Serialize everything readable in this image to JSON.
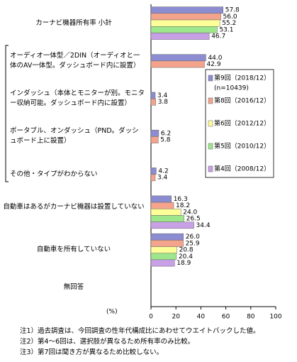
{
  "chart_data": {
    "type": "barh",
    "categories": [
      "カーナビ機器所有率 小計",
      "オーディオ一体型／2DIN（オーディオと一体のAV一体型。ダッシュボード内に設置）",
      "インダッシュ（本体とモニターが別。モニター収納可能。ダッシュボード内に設置）",
      "ポータブル、オンダッシュ（PND。ダッシュボード上に設置）",
      "その他・タイプがわからない",
      "自動車はあるがカーナビ機器は設置していない",
      "自動車を所有していない",
      "無回答"
    ],
    "series": [
      {
        "name": "第9回（2018/12）",
        "color": "#8c8cd2",
        "values": [
          57.8,
          44.0,
          3.4,
          6.2,
          4.2,
          16.3,
          26.0,
          null
        ],
        "value_labels": [
          "57.8",
          "44.0",
          "3.4",
          "6.2",
          "4.2",
          "16.3",
          "26.0",
          null
        ]
      },
      {
        "name": "第8回（2016/12）",
        "color": "#f4a48c",
        "values": [
          56.0,
          42.9,
          3.8,
          5.8,
          3.4,
          18.2,
          25.9,
          null
        ],
        "value_labels": [
          "56.0",
          "42.9",
          "3.8",
          "5.8",
          "3.4",
          "18.2",
          "25.9",
          null
        ]
      },
      {
        "name": "第6回（2012/12）",
        "color": "#ffff99",
        "values": [
          55.2,
          null,
          null,
          null,
          null,
          24.0,
          20.8,
          null
        ],
        "value_labels": [
          "55.2",
          null,
          null,
          null,
          null,
          "24.0",
          "20.8",
          null
        ]
      },
      {
        "name": "第5回（2010/12）",
        "color": "#9ee68c",
        "values": [
          53.1,
          null,
          null,
          null,
          null,
          26.5,
          20.4,
          null
        ],
        "value_labels": [
          "53.1",
          null,
          null,
          null,
          null,
          "26.5",
          "20.4",
          null
        ]
      },
      {
        "name": "第4回（2008/12）",
        "color": "#c8a0e6",
        "values": [
          46.7,
          null,
          null,
          null,
          null,
          34.4,
          18.9,
          null
        ],
        "value_labels": [
          "46.7",
          null,
          null,
          null,
          null,
          "34.4",
          "18.9",
          null
        ]
      }
    ],
    "sample_size": "(n=10439)",
    "xlabel": "(%)",
    "xlim": [
      0,
      100
    ],
    "xticks": [
      0,
      20,
      40,
      60,
      80,
      100
    ],
    "notes": [
      "注1）過去調査は、今回調査の性年代構成比にあわせてウエイトバックした値。",
      "注2）第4～6回は、選択肢が異なるため所有率のみ比較。",
      "注3）第7回は聞き方が異なるため比較しない。"
    ]
  }
}
